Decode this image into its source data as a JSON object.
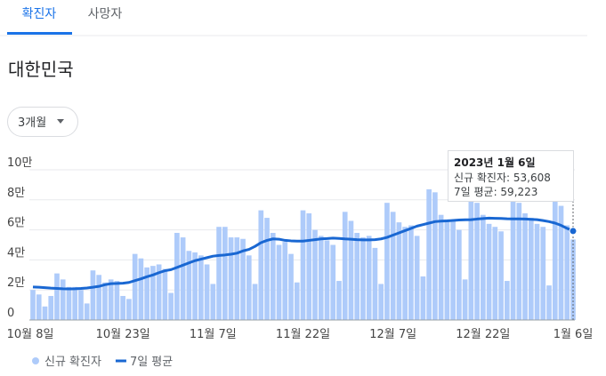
{
  "tabs": [
    "확진자",
    "사망자"
  ],
  "region": "대한민국",
  "dropdown": "3개월",
  "chart_data": {
    "type": "bar-line",
    "categories": [
      "10월 8일",
      null,
      null,
      null,
      null,
      null,
      null,
      null,
      null,
      null,
      null,
      null,
      null,
      null,
      null,
      "10월 23일",
      null,
      null,
      null,
      null,
      null,
      null,
      null,
      null,
      null,
      null,
      null,
      null,
      null,
      null,
      "11월 7일",
      null,
      null,
      null,
      null,
      null,
      null,
      null,
      null,
      null,
      null,
      null,
      null,
      null,
      null,
      "11월 22일",
      null,
      null,
      null,
      null,
      null,
      null,
      null,
      null,
      null,
      null,
      null,
      null,
      null,
      null,
      "12월 7일",
      null,
      null,
      null,
      null,
      null,
      null,
      null,
      null,
      null,
      null,
      null,
      null,
      null,
      null,
      "12월 22일",
      null,
      null,
      null,
      null,
      null,
      null,
      null,
      null,
      null,
      null,
      null,
      null,
      null,
      null,
      "1월 6일"
    ],
    "series": [
      {
        "name": "신규 확진자",
        "kind": "bar",
        "color": "#aecbfa",
        "values": [
          20000,
          17000,
          9000,
          16000,
          31000,
          27000,
          22000,
          22000,
          20000,
          11000,
          33000,
          30000,
          25000,
          27000,
          26000,
          16000,
          14000,
          44000,
          41000,
          35000,
          36000,
          37000,
          34000,
          18000,
          58000,
          55000,
          46000,
          45000,
          43000,
          37000,
          24000,
          62000,
          62000,
          55000,
          55000,
          54000,
          43000,
          24000,
          73000,
          68000,
          58000,
          50000,
          52000,
          44000,
          25000,
          73000,
          71000,
          60000,
          56000,
          53000,
          50000,
          26000,
          72000,
          66000,
          58000,
          55000,
          56000,
          48000,
          24000,
          78000,
          72000,
          65000,
          62000,
          63000,
          56000,
          29000,
          87000,
          85000,
          70000,
          67000,
          66000,
          60000,
          27000,
          88000,
          78000,
          70000,
          64000,
          62000,
          59000,
          26000,
          88000,
          78000,
          71000,
          68000,
          64000,
          62000,
          23000,
          88000,
          76000,
          63000,
          53608
        ]
      },
      {
        "name": "7일 평균",
        "kind": "line",
        "color": "#1967d2",
        "values": [
          22000,
          21800,
          21500,
          21200,
          21000,
          20800,
          20700,
          20800,
          21000,
          21300,
          21800,
          22400,
          23500,
          24200,
          24300,
          24500,
          25000,
          26200,
          27400,
          28800,
          30000,
          31500,
          32800,
          33500,
          35000,
          36500,
          38000,
          39500,
          40500,
          41500,
          42500,
          43000,
          43300,
          43800,
          44500,
          46000,
          47000,
          49000,
          51500,
          53000,
          54000,
          53800,
          53000,
          52700,
          52500,
          52500,
          53000,
          53500,
          54000,
          54200,
          54500,
          54300,
          54000,
          53800,
          53500,
          53300,
          53300,
          53500,
          54000,
          55000,
          56500,
          58000,
          59500,
          61000,
          62500,
          63500,
          64500,
          65500,
          65800,
          66000,
          66300,
          66600,
          66700,
          66800,
          67200,
          67500,
          67800,
          67700,
          67600,
          67400,
          67300,
          67300,
          67200,
          67000,
          66800,
          66200,
          65500,
          64500,
          63000,
          61000,
          59223
        ]
      }
    ],
    "ylim": [
      0,
      100000
    ],
    "yticks": [
      0,
      {
        "value": 20000,
        "label": "2만"
      },
      {
        "value": 40000,
        "label": "4만"
      },
      {
        "value": 60000,
        "label": "6만"
      },
      {
        "value": 80000,
        "label": "8만"
      },
      {
        "value": 100000,
        "label": "10만"
      }
    ],
    "grid": true,
    "tooltip": {
      "title": "2023년 1월 6일",
      "lines": [
        "신규 확진자: 53,608",
        "7일 평균: 59,223"
      ]
    }
  }
}
